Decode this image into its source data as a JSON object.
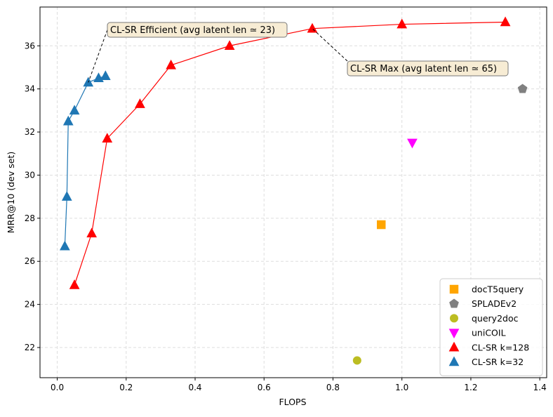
{
  "chart_data": {
    "type": "scatter",
    "xlabel": "FLOPS",
    "ylabel": "MRR@10 (dev set)",
    "xlim": [
      -0.05,
      1.42
    ],
    "ylim": [
      20.6,
      37.8
    ],
    "xticks": [
      0.0,
      0.2,
      0.4,
      0.6,
      0.8,
      1.0,
      1.2,
      1.4
    ],
    "xtick_labels": [
      "0.0",
      "0.2",
      "0.4",
      "0.6",
      "0.8",
      "1.0",
      "1.2",
      "1.4"
    ],
    "yticks": [
      22,
      24,
      26,
      28,
      30,
      32,
      34,
      36
    ],
    "ytick_labels": [
      "22",
      "24",
      "26",
      "28",
      "30",
      "32",
      "34",
      "36"
    ],
    "grid": true,
    "legend_position": "lower-right",
    "series": [
      {
        "name": "docT5query",
        "marker": "square",
        "color": "#ffa500",
        "connected": false,
        "points": [
          [
            0.94,
            27.7
          ]
        ]
      },
      {
        "name": "SPLADEv2",
        "marker": "pentagon",
        "color": "#808080",
        "connected": false,
        "points": [
          [
            1.35,
            34.0
          ]
        ]
      },
      {
        "name": "query2doc",
        "marker": "circle",
        "color": "#bcbd22",
        "connected": false,
        "points": [
          [
            0.87,
            21.4
          ]
        ]
      },
      {
        "name": "uniCOIL",
        "marker": "triangle-down",
        "color": "#ff00ff",
        "connected": false,
        "points": [
          [
            1.03,
            31.5
          ]
        ]
      },
      {
        "name": "CL-SR k=128",
        "marker": "triangle-up",
        "color": "#ff0000",
        "connected": true,
        "points": [
          [
            0.05,
            24.9
          ],
          [
            0.1,
            27.3
          ],
          [
            0.145,
            31.7
          ],
          [
            0.24,
            33.3
          ],
          [
            0.33,
            35.1
          ],
          [
            0.5,
            36.0
          ],
          [
            0.74,
            36.8
          ],
          [
            1.0,
            37.0
          ],
          [
            1.3,
            37.1
          ]
        ]
      },
      {
        "name": "CL-SR k=32",
        "marker": "triangle-up",
        "color": "#1f77b4",
        "connected": true,
        "points": [
          [
            0.022,
            26.7
          ],
          [
            0.028,
            29.0
          ],
          [
            0.032,
            32.5
          ],
          [
            0.05,
            33.0
          ],
          [
            0.09,
            34.3
          ],
          [
            0.12,
            34.5
          ],
          [
            0.14,
            34.6
          ]
        ]
      }
    ],
    "annotations": [
      {
        "text": "CL-SR Efficient (avg latent len ≃ 23)",
        "point": [
          0.09,
          34.3
        ]
      },
      {
        "text": "CL-SR Max (avg latent len ≃ 65)",
        "point": [
          0.74,
          36.8
        ]
      }
    ],
    "colors": {
      "grid": "#dddddd",
      "annotation_bg": "#f7ecd4",
      "annotation_border": "#7a7a7a"
    }
  }
}
